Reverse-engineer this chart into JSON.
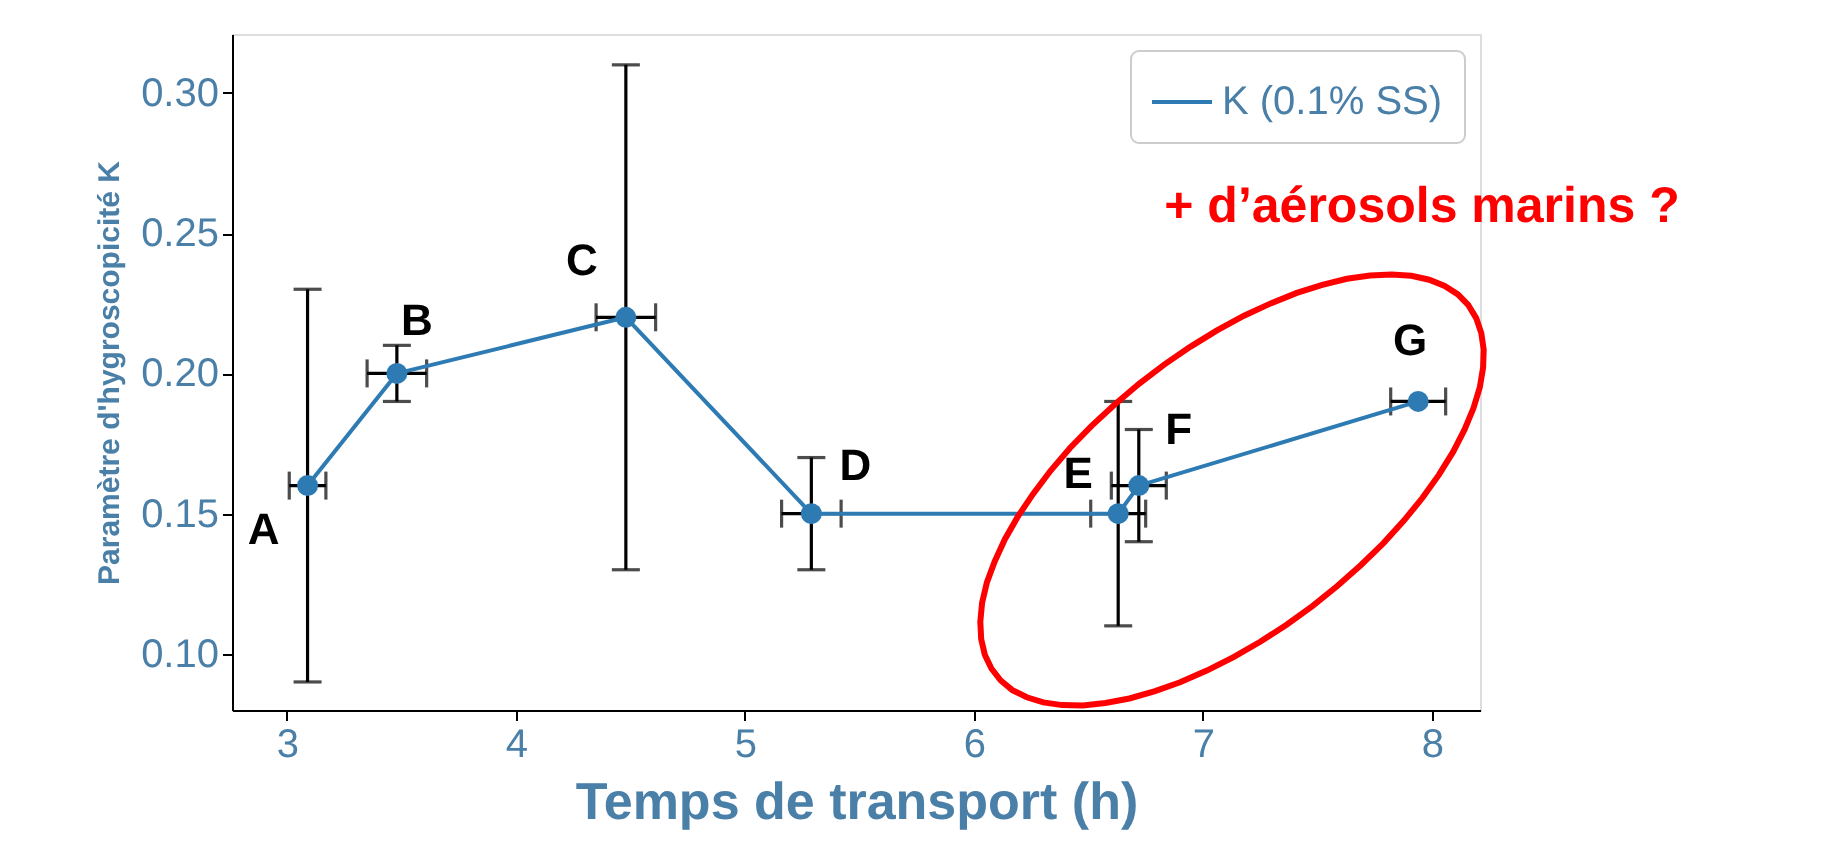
{
  "chart_data": {
    "type": "line",
    "xlabel": "Temps de transport (h)",
    "ylabel": "Paramètre d'hygroscopicité K",
    "x": [
      3.09,
      3.48,
      4.48,
      5.29,
      6.63,
      6.72,
      7.94
    ],
    "series": [
      {
        "name": "K (0.1% SS)",
        "color": "#2e7bb4",
        "values": [
          0.16,
          0.2,
          0.22,
          0.15,
          0.15,
          0.16,
          0.19
        ],
        "errors": [
          [
            0.09,
            0.23
          ],
          [
            0.19,
            0.21
          ],
          [
            0.13,
            0.31
          ],
          [
            0.13,
            0.17
          ],
          [
            0.11,
            0.19
          ],
          [
            0.14,
            0.18
          ],
          null
        ],
        "xerrors": [
          0.08,
          0.13,
          0.13,
          0.13,
          0.12,
          0.12,
          0.12
        ]
      }
    ],
    "xlim": [
      2.76,
      8.21
    ],
    "xticks": [
      3,
      4,
      5,
      6,
      7,
      8
    ],
    "ylim": [
      0.08,
      0.321
    ],
    "yticks": [
      {
        "value": 0.1,
        "label": "0.10"
      },
      0.15,
      {
        "value": 0.2,
        "label": "0.20"
      },
      0.25,
      {
        "value": 0.3,
        "label": "0.30"
      }
    ],
    "marker": "circle",
    "line_style": "solid",
    "grid": false,
    "legend": "top right",
    "annotations": [
      {
        "text": "A",
        "x": 3.09,
        "y": 0.16
      },
      {
        "text": "B",
        "x": 3.48,
        "y": 0.2
      },
      {
        "text": "C",
        "x": 4.48,
        "y": 0.22
      },
      {
        "text": "D",
        "x": 5.29,
        "y": 0.15
      },
      {
        "text": "E",
        "x": 6.63,
        "y": 0.15
      },
      {
        "text": "F",
        "x": 6.72,
        "y": 0.16
      },
      {
        "text": "G",
        "x": 7.94,
        "y": 0.19
      },
      "+ d’aérosols marins ?"
    ]
  }
}
